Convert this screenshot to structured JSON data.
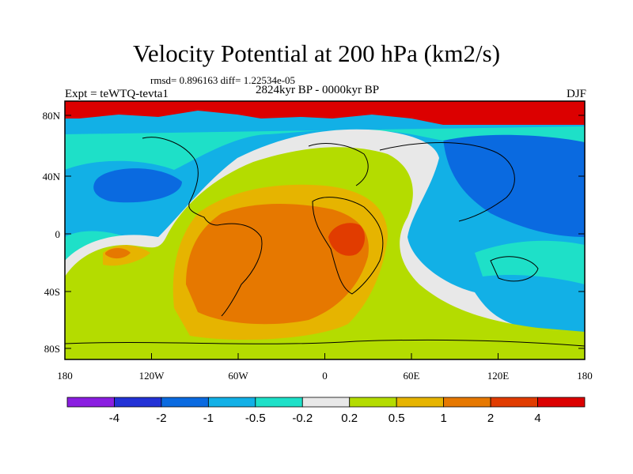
{
  "title": "Velocity Potential at 200 hPa (km2/s)",
  "stats": "rmsd= 0.896163 diff= 1.22534e-05",
  "experiment": "Expt = teWTQ-tevta1",
  "period": "2824kyr BP - 0000kyr BP",
  "season": "DJF",
  "axes": {
    "lat_ticks": [
      "80N",
      "40N",
      "0",
      "40S",
      "80S"
    ],
    "lon_ticks": [
      "180",
      "120W",
      "60W",
      "0",
      "60E",
      "120E",
      "180"
    ]
  },
  "colorbar": {
    "colors": [
      "#8a1ee0",
      "#2332d6",
      "#0a6ae0",
      "#12b0e6",
      "#1ee0c8",
      "#e8e8e8",
      "#b4dc00",
      "#e6b400",
      "#e67800",
      "#e13c00",
      "#dc0000"
    ],
    "labels": [
      "-4",
      "-2",
      "-1",
      "-0.5",
      "-0.2",
      "0.2",
      "0.5",
      "1",
      "2",
      "4"
    ]
  },
  "chart_data": {
    "type": "map-contour",
    "title": "Velocity Potential at 200 hPa (km2/s)",
    "levels": [
      -4,
      -2,
      -1,
      -0.5,
      -0.2,
      0.2,
      0.5,
      1,
      2,
      4
    ],
    "lat_range": [
      -90,
      90
    ],
    "lon_range": [
      -180,
      180
    ]
  }
}
